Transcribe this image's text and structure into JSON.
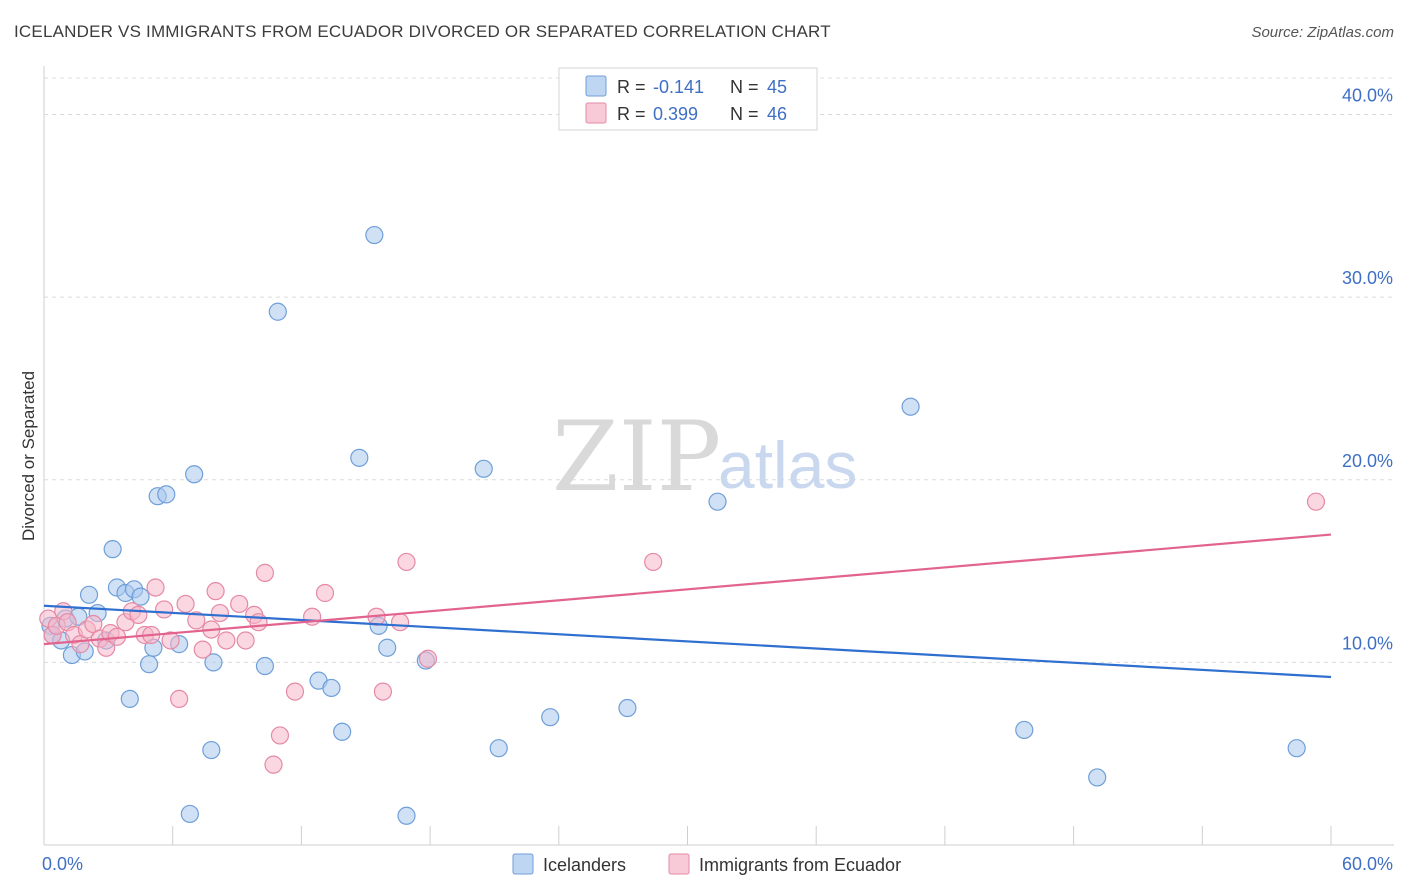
{
  "header": {
    "title": "ICELANDER VS IMMIGRANTS FROM ECUADOR DIVORCED OR SEPARATED CORRELATION CHART",
    "source": "Source: ZipAtlas.com"
  },
  "watermark": {
    "zip": "ZIP",
    "atlas": "atlas"
  },
  "chart_data": {
    "type": "scatter",
    "title": "ICELANDER VS IMMIGRANTS FROM ECUADOR DIVORCED OR SEPARATED CORRELATION CHART",
    "xlabel": "",
    "ylabel": "Divorced or Separated",
    "xlim": [
      0,
      60
    ],
    "ylim": [
      0,
      42
    ],
    "x_tick_labels": [
      "0.0%",
      "60.0%"
    ],
    "y_ticks": [
      10,
      20,
      30,
      40
    ],
    "y_tick_labels": [
      "10.0%",
      "20.0%",
      "30.0%",
      "40.0%"
    ],
    "grid": true,
    "legend_top": {
      "rows": [
        {
          "r_label": "R =",
          "r_value": "-0.141",
          "n_label": "N =",
          "n_value": "45",
          "color": "#a9c8ef"
        },
        {
          "r_label": "R =",
          "r_value": "0.399",
          "n_label": "N =",
          "n_value": "46",
          "color": "#f5b7c9"
        }
      ]
    },
    "series": [
      {
        "name": "Icelanders",
        "color": "#a9c8ef",
        "stroke": "#6f9fd8",
        "trend": {
          "x": [
            0,
            60
          ],
          "y": [
            13.1,
            9.2
          ],
          "color": "#2f6fd0"
        },
        "points": [
          [
            0.3,
            12.0
          ],
          [
            0.4,
            11.5
          ],
          [
            0.8,
            11.2
          ],
          [
            1.0,
            12.4
          ],
          [
            1.3,
            10.4
          ],
          [
            1.6,
            12.5
          ],
          [
            1.9,
            10.6
          ],
          [
            2.1,
            13.7
          ],
          [
            2.5,
            12.7
          ],
          [
            2.9,
            11.2
          ],
          [
            3.2,
            16.2
          ],
          [
            3.4,
            14.1
          ],
          [
            3.8,
            13.8
          ],
          [
            4.0,
            8.0
          ],
          [
            4.2,
            14.0
          ],
          [
            4.5,
            13.6
          ],
          [
            4.9,
            9.9
          ],
          [
            5.1,
            10.8
          ],
          [
            5.3,
            19.1
          ],
          [
            5.7,
            19.2
          ],
          [
            6.3,
            11.0
          ],
          [
            6.8,
            1.7
          ],
          [
            7.0,
            20.3
          ],
          [
            7.8,
            5.2
          ],
          [
            7.9,
            10.0
          ],
          [
            10.3,
            9.8
          ],
          [
            10.9,
            29.2
          ],
          [
            12.8,
            9.0
          ],
          [
            13.4,
            8.6
          ],
          [
            13.9,
            6.2
          ],
          [
            14.7,
            21.2
          ],
          [
            15.4,
            33.4
          ],
          [
            15.6,
            12.0
          ],
          [
            16.0,
            10.8
          ],
          [
            16.9,
            1.6
          ],
          [
            17.8,
            10.1
          ],
          [
            20.5,
            20.6
          ],
          [
            21.2,
            5.3
          ],
          [
            23.6,
            7.0
          ],
          [
            27.2,
            7.5
          ],
          [
            31.4,
            18.8
          ],
          [
            40.4,
            24.0
          ],
          [
            45.7,
            6.3
          ],
          [
            49.1,
            3.7
          ],
          [
            58.4,
            5.3
          ]
        ]
      },
      {
        "name": "Immigrants from Ecuador",
        "color": "#f5b7c9",
        "stroke": "#e58aa6",
        "trend": {
          "x": [
            0,
            60
          ],
          "y": [
            11.0,
            17.0
          ],
          "color": "#e2638e"
        },
        "points": [
          [
            0.2,
            12.4
          ],
          [
            0.4,
            11.5
          ],
          [
            0.6,
            12.0
          ],
          [
            0.9,
            12.8
          ],
          [
            1.1,
            12.2
          ],
          [
            1.4,
            11.5
          ],
          [
            1.7,
            11.0
          ],
          [
            2.0,
            11.8
          ],
          [
            2.3,
            12.1
          ],
          [
            2.6,
            11.3
          ],
          [
            2.9,
            10.8
          ],
          [
            3.1,
            11.6
          ],
          [
            3.4,
            11.4
          ],
          [
            3.8,
            12.2
          ],
          [
            4.1,
            12.8
          ],
          [
            4.4,
            12.6
          ],
          [
            4.7,
            11.5
          ],
          [
            5.0,
            11.5
          ],
          [
            5.2,
            14.1
          ],
          [
            5.6,
            12.9
          ],
          [
            5.9,
            11.2
          ],
          [
            6.3,
            8.0
          ],
          [
            6.6,
            13.2
          ],
          [
            7.1,
            12.3
          ],
          [
            7.4,
            10.7
          ],
          [
            7.8,
            11.8
          ],
          [
            8.0,
            13.9
          ],
          [
            8.2,
            12.7
          ],
          [
            8.5,
            11.2
          ],
          [
            9.1,
            13.2
          ],
          [
            9.4,
            11.2
          ],
          [
            9.8,
            12.6
          ],
          [
            10.0,
            12.2
          ],
          [
            10.3,
            14.9
          ],
          [
            11.0,
            6.0
          ],
          [
            10.7,
            4.4
          ],
          [
            11.7,
            8.4
          ],
          [
            12.5,
            12.5
          ],
          [
            13.1,
            13.8
          ],
          [
            15.5,
            12.5
          ],
          [
            15.8,
            8.4
          ],
          [
            16.6,
            12.2
          ],
          [
            16.9,
            15.5
          ],
          [
            17.9,
            10.2
          ],
          [
            28.4,
            15.5
          ],
          [
            59.3,
            18.8
          ]
        ]
      }
    ]
  },
  "legend_bottom": {
    "items": [
      {
        "label": "Icelanders"
      },
      {
        "label": "Immigrants from Ecuador"
      }
    ]
  }
}
